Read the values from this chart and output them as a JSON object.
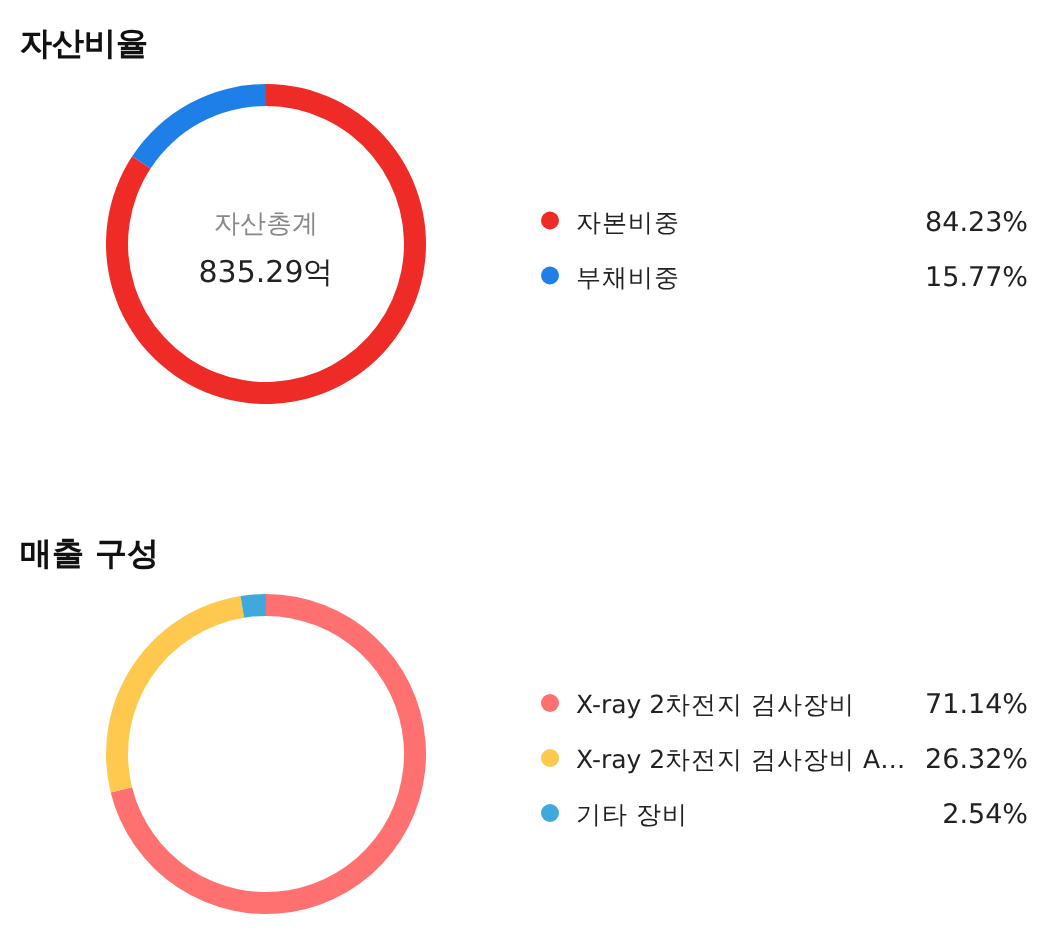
{
  "chart_data": [
    {
      "type": "donut",
      "title": "자산비율",
      "categories": [
        "자본비중",
        "부채비중"
      ],
      "values": [
        84.23,
        15.77
      ],
      "colors": [
        "#ee2b26",
        "#1e7fe8"
      ],
      "value_labels": [
        "84.23%",
        "15.77%"
      ],
      "legend": "right",
      "annotations": [
        "자산총계",
        "835.29억"
      ]
    },
    {
      "type": "donut",
      "title": "매출 구성",
      "categories": [
        "X-ray 2차전지 검사장비",
        "X-ray 2차전지 검사장비 A…",
        "기타 장비"
      ],
      "values": [
        71.14,
        26.32,
        2.54
      ],
      "colors": [
        "#ff7070",
        "#ffc84f",
        "#3fa9dd"
      ],
      "value_labels": [
        "71.14%",
        "26.32%",
        "2.54%"
      ],
      "legend": "right"
    }
  ]
}
